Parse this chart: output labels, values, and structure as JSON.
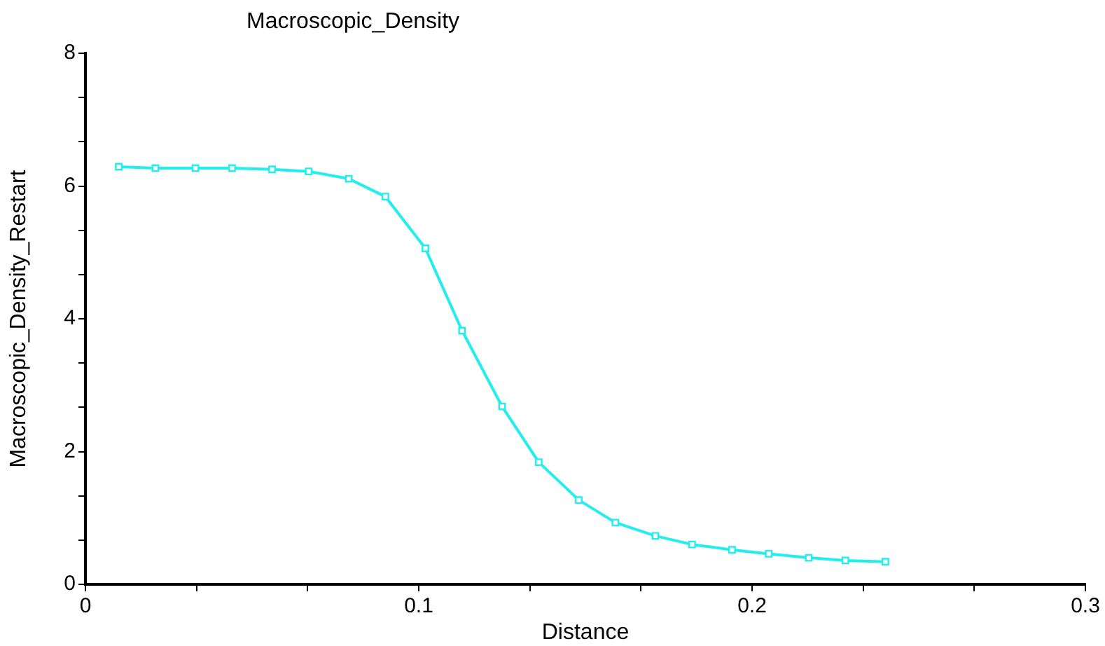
{
  "chart_data": {
    "type": "line",
    "title": "Macroscopic_Density",
    "xlabel": "Distance",
    "ylabel": "Macroscopic_Density_Restart",
    "x": [
      0.01,
      0.021,
      0.033,
      0.044,
      0.056,
      0.067,
      0.079,
      0.09,
      0.102,
      0.113,
      0.125,
      0.136,
      0.148,
      0.159,
      0.171,
      0.182,
      0.194,
      0.205,
      0.217,
      0.228,
      0.24
    ],
    "series": [
      {
        "color": "#22eeee",
        "values": [
          6.29,
          6.27,
          6.27,
          6.27,
          6.25,
          6.22,
          6.11,
          5.84,
          5.06,
          3.82,
          2.68,
          1.84,
          1.27,
          0.93,
          0.73,
          0.6,
          0.52,
          0.46,
          0.4,
          0.36,
          0.34
        ]
      }
    ],
    "xlim": [
      0,
      0.3
    ],
    "xticks": [
      0,
      {
        "value": 0.0333,
        "label": null
      },
      {
        "value": 0.0667,
        "label": null
      },
      0.1,
      {
        "value": 0.1333,
        "label": null
      },
      {
        "value": 0.1667,
        "label": null
      },
      0.2,
      {
        "value": 0.2333,
        "label": null
      },
      {
        "value": 0.2667,
        "label": null
      },
      0.3
    ],
    "ylim": [
      0,
      8
    ],
    "yticks": [
      0,
      {
        "value": 0.667,
        "label": null
      },
      {
        "value": 1.333,
        "label": null
      },
      2,
      {
        "value": 2.667,
        "label": null
      },
      {
        "value": 3.333,
        "label": null
      },
      4,
      {
        "value": 4.667,
        "label": null
      },
      {
        "value": 5.333,
        "label": null
      },
      6,
      {
        "value": 6.667,
        "label": null
      },
      {
        "value": 7.333,
        "label": null
      },
      8
    ],
    "grid": false,
    "legend": false,
    "marker": "square",
    "line_style": "solid"
  }
}
